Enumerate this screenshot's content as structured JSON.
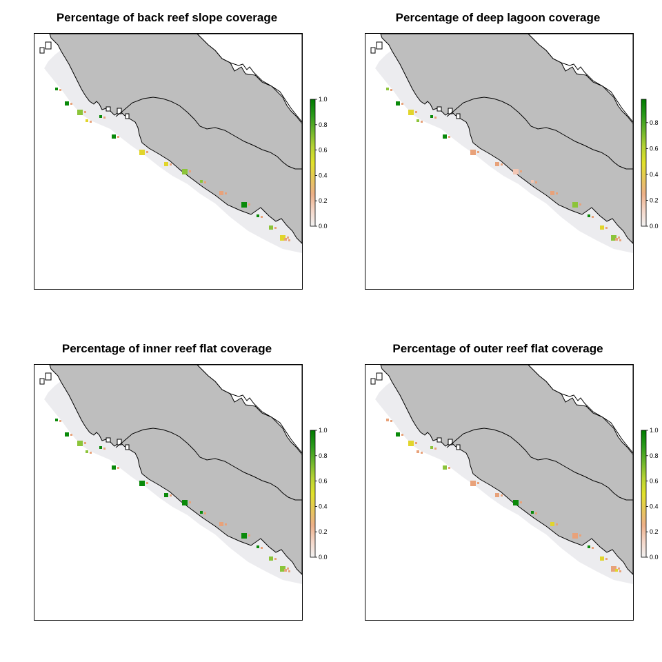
{
  "colors": {
    "land": "#bebebe",
    "zone": "#ececef",
    "low": "#f2c6b4",
    "mid_low": "#e8a27a",
    "mid": "#e1d52c",
    "mid_high": "#8cc43a",
    "high": "#0a8a0a",
    "outline": "#000000"
  },
  "legend_colors": [
    "#f2f2f2",
    "#f4d6c8",
    "#edb089",
    "#e6c75a",
    "#e1e12a",
    "#b6d334",
    "#6db52c",
    "#2a9a1a",
    "#007a00"
  ],
  "panels": [
    {
      "title": "Percentage of back reef slope coverage",
      "legend_ticks": [
        "0.0",
        "0.2",
        "0.4",
        "0.6",
        "0.8",
        "1.0"
      ],
      "legend_max": 1.0,
      "hotspot_colors": [
        "#0a8a0a",
        "#0a8a0a",
        "#8cc43a",
        "#e1d52c",
        "#0a8a0a",
        "#e1d52c",
        "#8cc43a",
        "#e8a27a"
      ]
    },
    {
      "title": "Percentage of deep lagoon coverage",
      "legend_ticks": [
        "0.0",
        "0.2",
        "0.4",
        "0.6",
        "0.8"
      ],
      "legend_max": 0.98,
      "hotspot_colors": [
        "#8cc43a",
        "#0a8a0a",
        "#e1d52c",
        "#8cc43a",
        "#0a8a0a",
        "#e8a27a",
        "#f2c6b4",
        "#e8a27a"
      ]
    },
    {
      "title": "Percentage of inner reef flat coverage",
      "legend_ticks": [
        "0.0",
        "0.2",
        "0.4",
        "0.6",
        "0.8",
        "1.0"
      ],
      "legend_max": 1.0,
      "hotspot_colors": [
        "#0a8a0a",
        "#0a8a0a",
        "#8cc43a",
        "#8cc43a",
        "#0a8a0a",
        "#0a8a0a",
        "#0a8a0a",
        "#e8a27a"
      ]
    },
    {
      "title": "Percentage of outer reef flat coverage",
      "legend_ticks": [
        "0.0",
        "0.2",
        "0.4",
        "0.6",
        "0.8",
        "1.0"
      ],
      "legend_max": 1.0,
      "hotspot_colors": [
        "#e8a27a",
        "#0a8a0a",
        "#e1d52c",
        "#e8a27a",
        "#8cc43a",
        "#e8a27a",
        "#0a8a0a",
        "#e1d52c"
      ]
    }
  ]
}
